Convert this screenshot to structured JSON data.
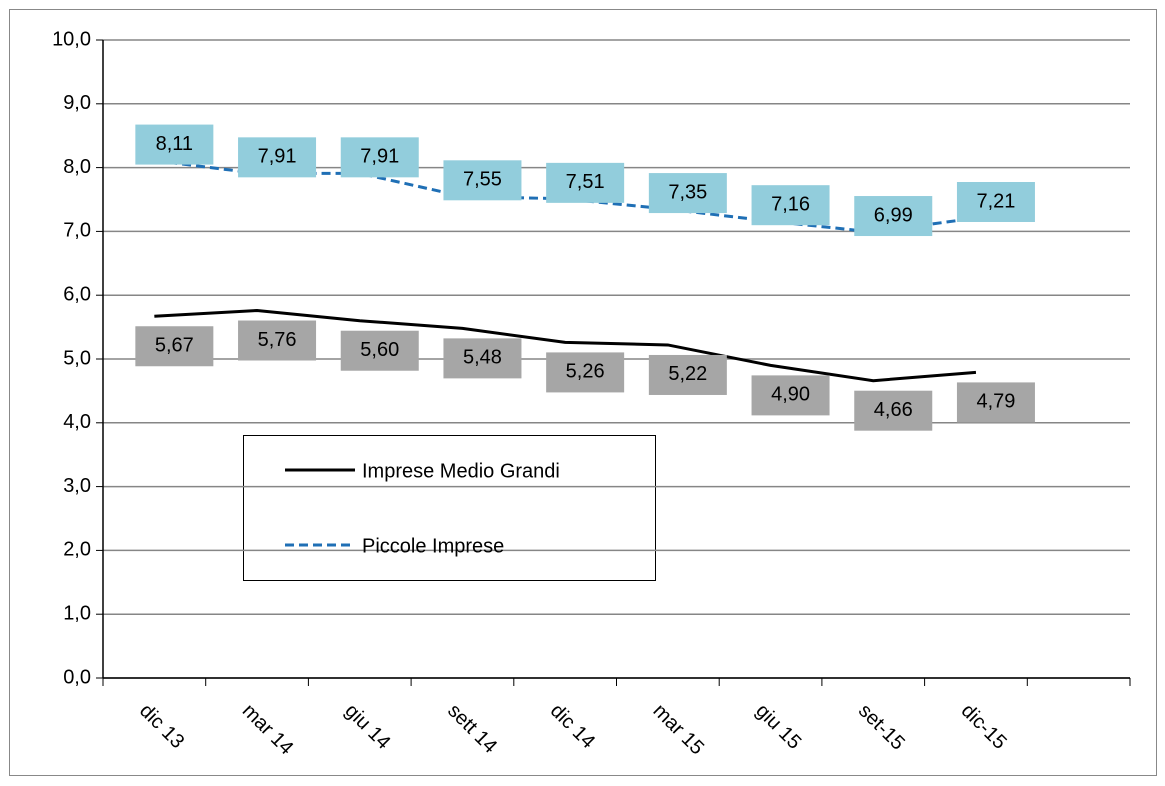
{
  "chart_data": {
    "type": "line",
    "categories": [
      "dic 13",
      "mar 14",
      "giu 14",
      "sett 14",
      "dic 14",
      "mar 15",
      "giu 15",
      "set-15",
      "dic-15",
      null
    ],
    "series": [
      {
        "name": "Imprese Medio Grandi",
        "color": "#000000",
        "dash": false,
        "label_color": "#a6a6a6",
        "values": [
          5.67,
          5.76,
          5.6,
          5.48,
          5.26,
          5.22,
          4.9,
          4.66,
          4.79,
          null
        ],
        "value_labels": [
          "5,67",
          "5,76",
          "5,60",
          "5,48",
          "5,26",
          "5,22",
          "4,90",
          "4,66",
          "4,79",
          null
        ]
      },
      {
        "name": "Piccole Imprese",
        "color": "#1f6fb5",
        "dash": true,
        "label_color": "#92cddc",
        "values": [
          8.11,
          7.91,
          7.91,
          7.55,
          7.51,
          7.35,
          7.16,
          6.99,
          7.21,
          null
        ],
        "value_labels": [
          "8,11",
          "7,91",
          "7,91",
          "7,55",
          "7,51",
          "7,35",
          "7,16",
          "6,99",
          "7,21",
          null
        ]
      }
    ],
    "ylim": [
      0,
      10
    ],
    "yticks": [
      {
        "value": 0,
        "label": "0,0"
      },
      {
        "value": 1,
        "label": "1,0"
      },
      {
        "value": 2,
        "label": "2,0"
      },
      {
        "value": 3,
        "label": "3,0"
      },
      {
        "value": 4,
        "label": "4,0"
      },
      {
        "value": 5,
        "label": "5,0"
      },
      {
        "value": 6,
        "label": "6,0"
      },
      {
        "value": 7,
        "label": "7,0"
      },
      {
        "value": 8,
        "label": "8,0"
      },
      {
        "value": 9,
        "label": "9,0"
      },
      {
        "value": 10,
        "label": "10,0"
      }
    ],
    "grid": true
  }
}
